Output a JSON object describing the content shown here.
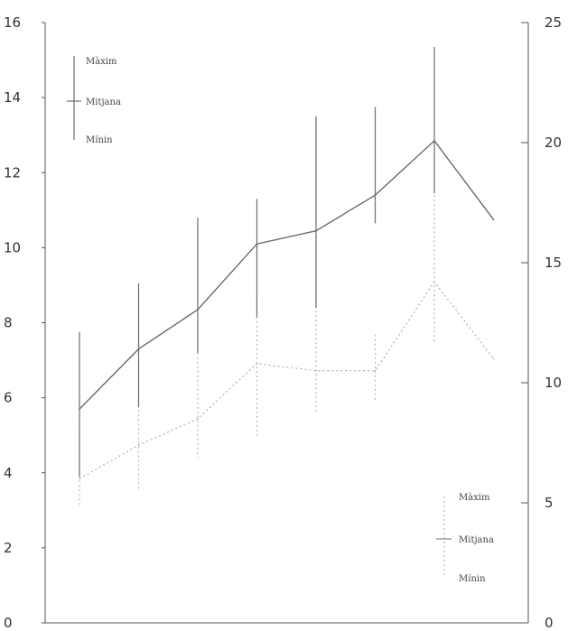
{
  "chart_data": {
    "type": "line",
    "title": "",
    "xlabel": "",
    "x": [
      1,
      2,
      3,
      4,
      5,
      6,
      7,
      8
    ],
    "axes": {
      "left": {
        "ylim": [
          0,
          16
        ],
        "ticks": [
          "0",
          "2",
          "4",
          "6",
          "8",
          "10",
          "12",
          "14",
          "16"
        ]
      },
      "right": {
        "ylim": [
          0,
          25
        ],
        "ticks": [
          "0",
          "5",
          "10",
          "15",
          "20",
          "25"
        ]
      }
    },
    "grid": false,
    "series": [
      {
        "axis": "left",
        "style": "solid",
        "mean": [
          5.7,
          7.3,
          8.35,
          10.1,
          10.45,
          11.4,
          12.85,
          10.75
        ],
        "min": [
          3.9,
          5.75,
          7.2,
          8.15,
          8.4,
          10.65,
          11.45,
          null
        ],
        "max": [
          7.75,
          9.05,
          10.8,
          11.3,
          13.5,
          13.75,
          15.35,
          null
        ]
      },
      {
        "axis": "right",
        "style": "dotted",
        "mean": [
          6.0,
          7.4,
          8.5,
          10.8,
          10.5,
          10.5,
          14.2,
          11.0
        ],
        "min": [
          4.8,
          5.5,
          6.9,
          7.8,
          8.8,
          9.2,
          11.6,
          null
        ],
        "max": [
          8.0,
          9.8,
          12.0,
          13.5,
          14.5,
          12.0,
          19.5,
          null
        ]
      }
    ],
    "legends": [
      {
        "style": "solid",
        "labels": {
          "max": "Màxim",
          "mean": "Mitjana",
          "min": "Mínin"
        }
      },
      {
        "style": "dotted",
        "labels": {
          "max": "Màxim",
          "mean": "Mitjana",
          "min": "Mínin"
        }
      }
    ]
  },
  "colors": {
    "solid": "#6a6a78",
    "dotted": "#b5b5b5",
    "axis": "#555555"
  }
}
